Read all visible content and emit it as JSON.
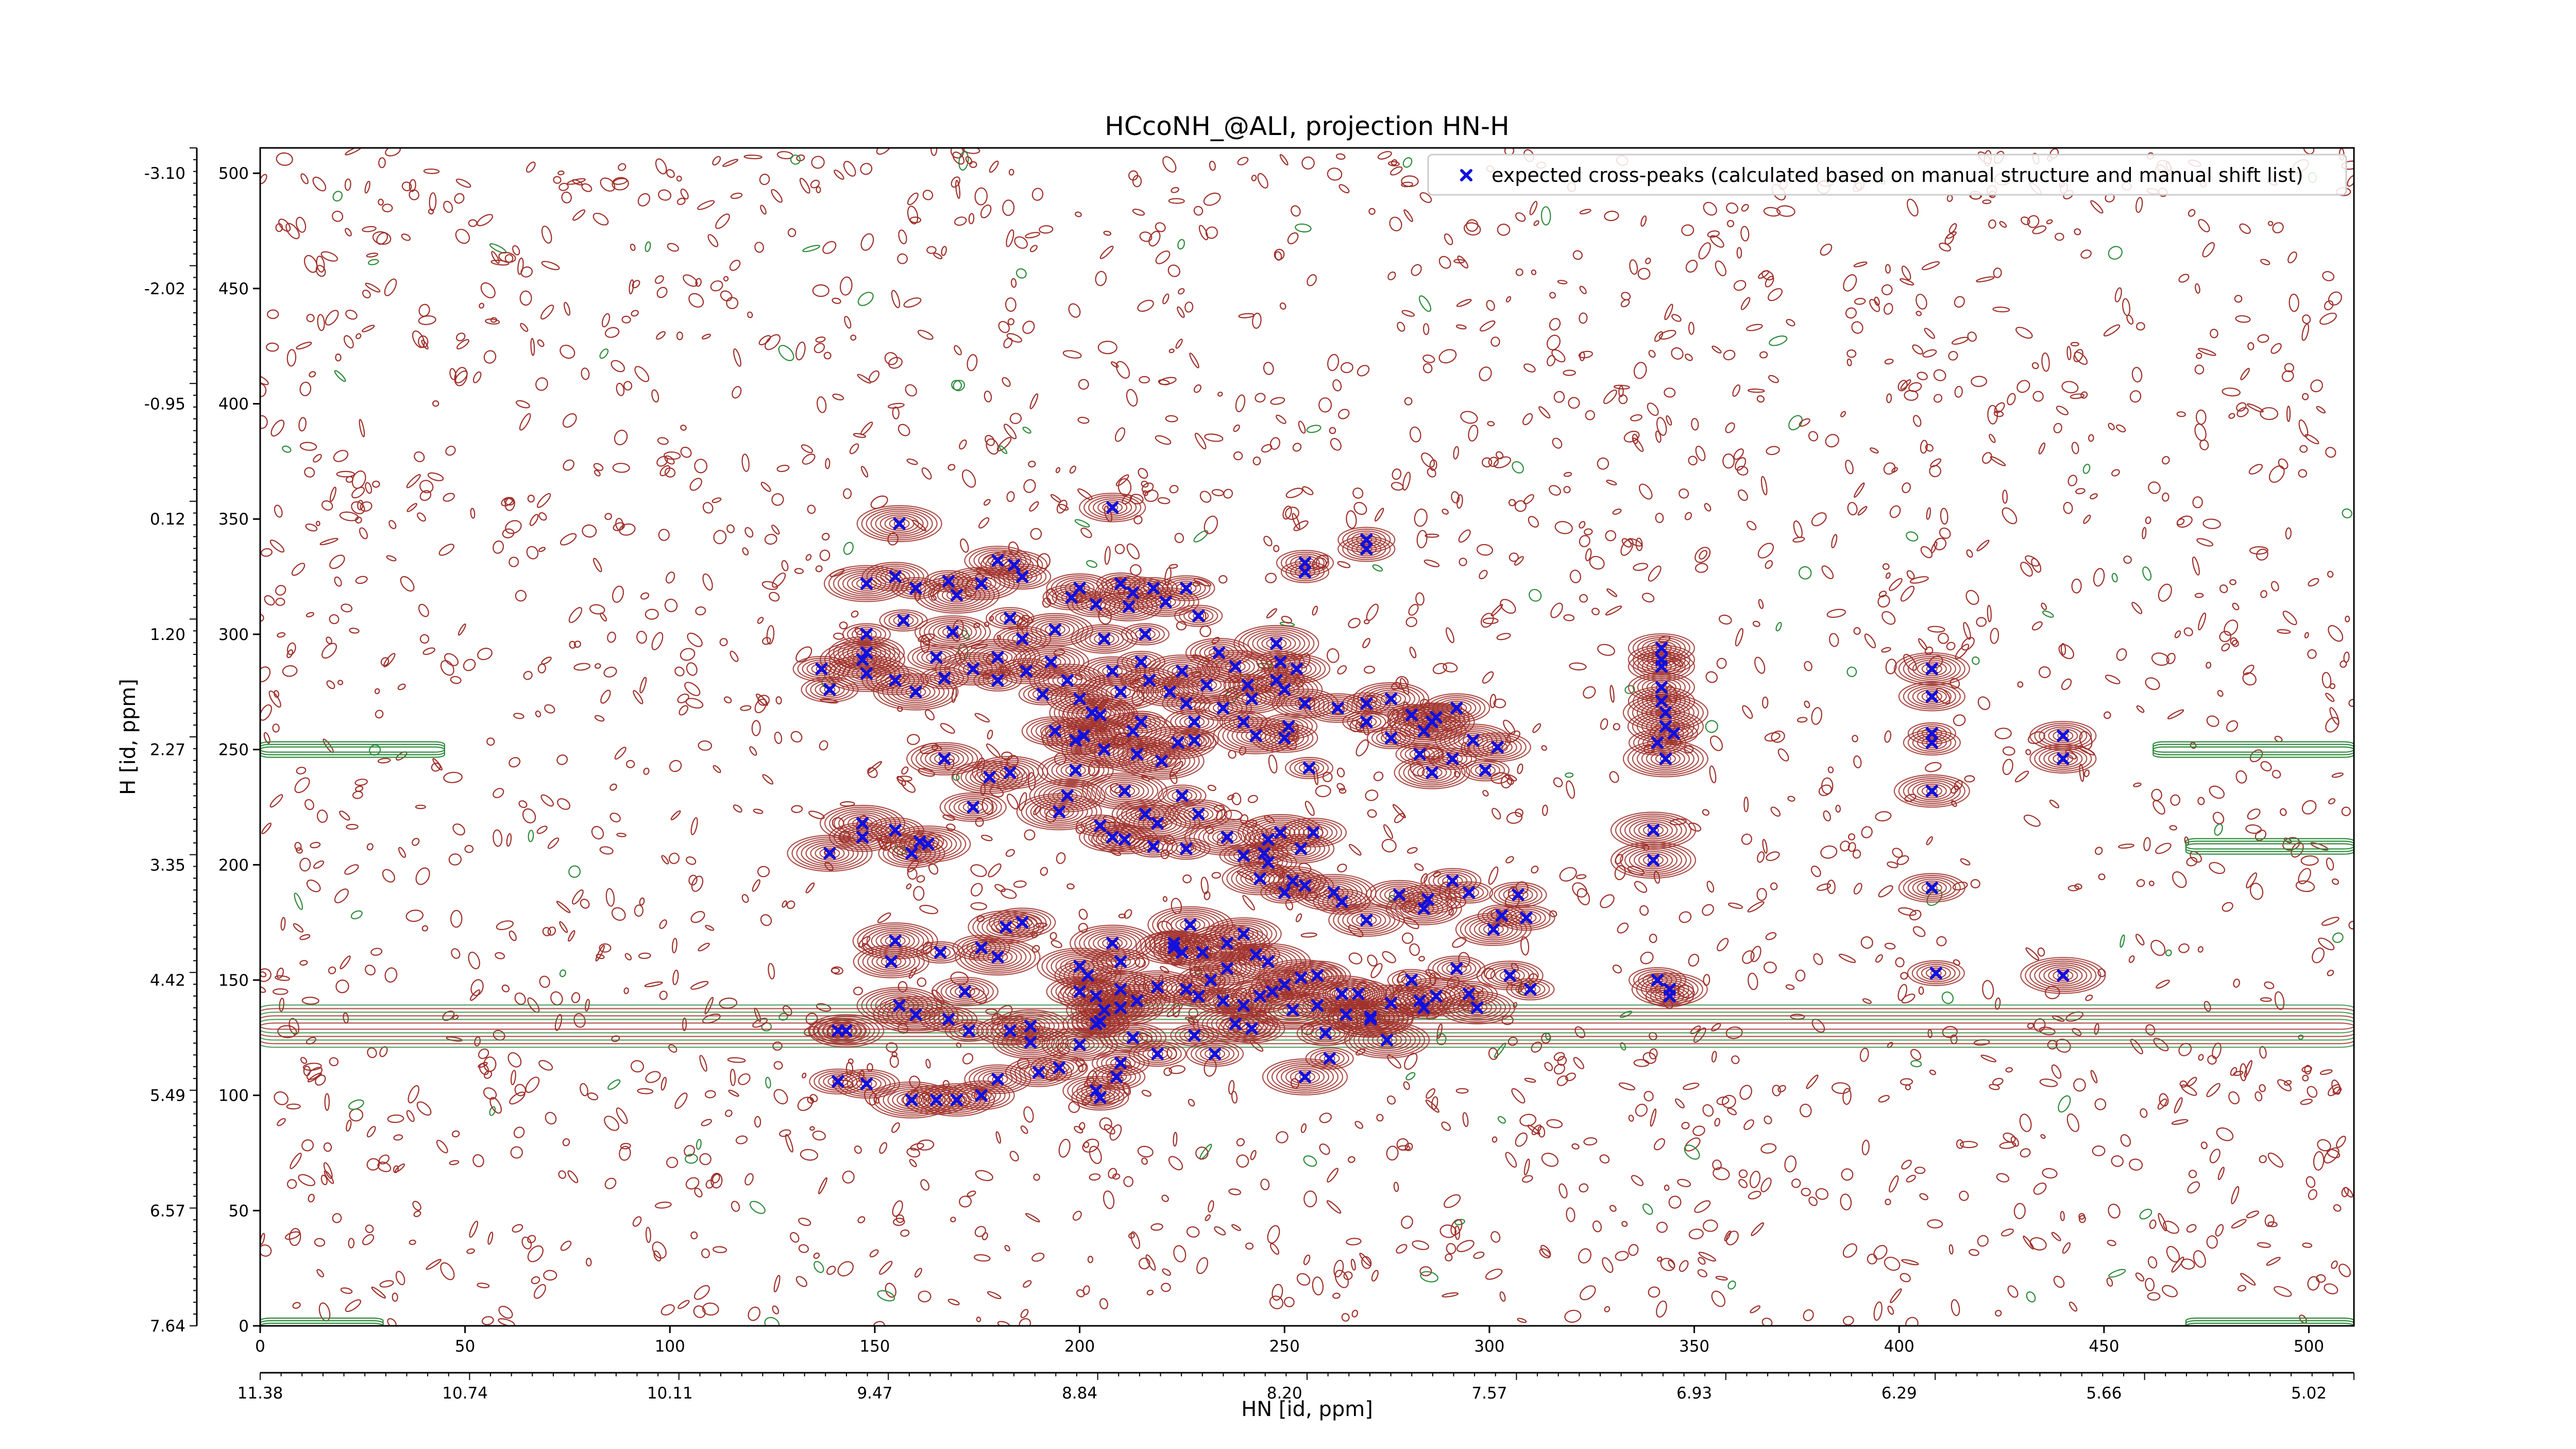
{
  "chart_data": {
    "type": "scatter",
    "title": "HCcoNH_@ALI, projection HN-H",
    "xlabel": "HN [id, ppm]",
    "ylabel": "H [id, ppm]",
    "xlim": [
      0,
      511
    ],
    "ylim": [
      0,
      511
    ],
    "x_ticks": [
      0,
      50,
      100,
      150,
      200,
      250,
      300,
      350,
      400,
      450,
      500
    ],
    "y_ticks": [
      0,
      50,
      100,
      150,
      200,
      250,
      300,
      350,
      400,
      450,
      500
    ],
    "x_ppm_ticks": [
      "11.38",
      "10.74",
      "10.11",
      "9.47",
      "8.84",
      "8.20",
      "7.57",
      "6.93",
      "6.29",
      "5.66",
      "5.02"
    ],
    "y_ppm_ticks": [
      "7.64",
      "6.57",
      "5.49",
      "4.42",
      "3.35",
      "2.27",
      "1.20",
      "0.12",
      "-0.95",
      "-2.02",
      "-3.10"
    ],
    "legend": {
      "position": "top-right",
      "label": "expected cross-peaks (calculated based on manual structure and manual shift list)"
    },
    "colors": {
      "positive_contour": "#a0302a",
      "negative_contour": "#2e8b3c",
      "peak_marker": "#1010e0"
    },
    "grid": false,
    "series": [
      {
        "marker": "blue-x",
        "points": [
          [
            156,
            348
          ],
          [
            208,
            355
          ],
          [
            270,
            337
          ],
          [
            270,
            341
          ],
          [
            255,
            327
          ],
          [
            255,
            331
          ],
          [
            148,
            322
          ],
          [
            155,
            325
          ],
          [
            160,
            320
          ],
          [
            168,
            323
          ],
          [
            170,
            317
          ],
          [
            176,
            322
          ],
          [
            180,
            332
          ],
          [
            184,
            330
          ],
          [
            186,
            325
          ],
          [
            198,
            316
          ],
          [
            200,
            320
          ],
          [
            204,
            313
          ],
          [
            210,
            322
          ],
          [
            213,
            318
          ],
          [
            218,
            320
          ],
          [
            221,
            314
          ],
          [
            226,
            320
          ],
          [
            229,
            308
          ],
          [
            148,
            300
          ],
          [
            157,
            306
          ],
          [
            169,
            301
          ],
          [
            183,
            307
          ],
          [
            186,
            298
          ],
          [
            194,
            302
          ],
          [
            206,
            298
          ],
          [
            212,
            312
          ],
          [
            216,
            300
          ],
          [
            147,
            289
          ],
          [
            148,
            292
          ],
          [
            148,
            283
          ],
          [
            139,
            276
          ],
          [
            137,
            285
          ],
          [
            155,
            280
          ],
          [
            160,
            275
          ],
          [
            165,
            290
          ],
          [
            167,
            281
          ],
          [
            174,
            285
          ],
          [
            180,
            280
          ],
          [
            180,
            290
          ],
          [
            187,
            284
          ],
          [
            191,
            274
          ],
          [
            193,
            288
          ],
          [
            197,
            280
          ],
          [
            200,
            272
          ],
          [
            203,
            266
          ],
          [
            208,
            284
          ],
          [
            210,
            275
          ],
          [
            215,
            288
          ],
          [
            217,
            280
          ],
          [
            222,
            275
          ],
          [
            225,
            284
          ],
          [
            226,
            270
          ],
          [
            228,
            262
          ],
          [
            231,
            278
          ],
          [
            235,
            268
          ],
          [
            240,
            262
          ],
          [
            243,
            256
          ],
          [
            248,
            296
          ],
          [
            249,
            288
          ],
          [
            248,
            280
          ],
          [
            250,
            276
          ],
          [
            253,
            285
          ],
          [
            255,
            270
          ],
          [
            251,
            260
          ],
          [
            234,
            292
          ],
          [
            238,
            286
          ],
          [
            241,
            278
          ],
          [
            242,
            272
          ],
          [
            194,
            258
          ],
          [
            199,
            254
          ],
          [
            201,
            256
          ],
          [
            206,
            250
          ],
          [
            213,
            258
          ],
          [
            214,
            248
          ],
          [
            220,
            245
          ],
          [
            224,
            253
          ],
          [
            228,
            254
          ],
          [
            215,
            262
          ],
          [
            205,
            265
          ],
          [
            250,
            255
          ],
          [
            256,
            242
          ],
          [
            263,
            268
          ],
          [
            270,
            262
          ],
          [
            276,
            255
          ],
          [
            283,
            248
          ],
          [
            286,
            240
          ],
          [
            281,
            265
          ],
          [
            286,
            262
          ],
          [
            284,
            258
          ],
          [
            292,
            268
          ],
          [
            291,
            246
          ],
          [
            296,
            254
          ],
          [
            299,
            241
          ],
          [
            302,
            251
          ],
          [
            276,
            272
          ],
          [
            270,
            270
          ],
          [
            287,
            264
          ],
          [
            167,
            246
          ],
          [
            183,
            240
          ],
          [
            178,
            238
          ],
          [
            197,
            230
          ],
          [
            211,
            232
          ],
          [
            216,
            222
          ],
          [
            219,
            218
          ],
          [
            225,
            230
          ],
          [
            229,
            222
          ],
          [
            199,
            241
          ],
          [
            139,
            205
          ],
          [
            147,
            212
          ],
          [
            147,
            218
          ],
          [
            155,
            215
          ],
          [
            161,
            210
          ],
          [
            159,
            205
          ],
          [
            163,
            209
          ],
          [
            174,
            225
          ],
          [
            195,
            223
          ],
          [
            205,
            217
          ],
          [
            208,
            212
          ],
          [
            211,
            211
          ],
          [
            218,
            208
          ],
          [
            226,
            207
          ],
          [
            236,
            212
          ],
          [
            246,
            211
          ],
          [
            249,
            214
          ],
          [
            254,
            207
          ],
          [
            257,
            214
          ],
          [
            244,
            194
          ],
          [
            246,
            201
          ],
          [
            250,
            188
          ],
          [
            240,
            204
          ],
          [
            245,
            205
          ],
          [
            252,
            193
          ],
          [
            255,
            191
          ],
          [
            262,
            188
          ],
          [
            264,
            184
          ],
          [
            270,
            176
          ],
          [
            278,
            187
          ],
          [
            284,
            181
          ],
          [
            285,
            185
          ],
          [
            291,
            193
          ],
          [
            295,
            188
          ],
          [
            303,
            178
          ],
          [
            307,
            187
          ],
          [
            309,
            177
          ],
          [
            301,
            172
          ],
          [
            223,
            166
          ],
          [
            225,
            162
          ],
          [
            230,
            162
          ],
          [
            223,
            164
          ],
          [
            227,
            174
          ],
          [
            236,
            166
          ],
          [
            240,
            170
          ],
          [
            243,
            161
          ],
          [
            246,
            158
          ],
          [
            236,
            155
          ],
          [
            232,
            150
          ],
          [
            229,
            143
          ],
          [
            235,
            141
          ],
          [
            226,
            146
          ],
          [
            219,
            147
          ],
          [
            214,
            141
          ],
          [
            210,
            138
          ],
          [
            205,
            132
          ],
          [
            200,
            156
          ],
          [
            202,
            152
          ],
          [
            200,
            145
          ],
          [
            204,
            143
          ],
          [
            208,
            166
          ],
          [
            210,
            158
          ],
          [
            210,
            146
          ],
          [
            206,
            137
          ],
          [
            180,
            160
          ],
          [
            176,
            164
          ],
          [
            182,
            173
          ],
          [
            186,
            175
          ],
          [
            166,
            162
          ],
          [
            155,
            167
          ],
          [
            154,
            158
          ],
          [
            172,
            145
          ],
          [
            204,
            131
          ],
          [
            200,
            122
          ],
          [
            213,
            125
          ],
          [
            219,
            118
          ],
          [
            228,
            126
          ],
          [
            238,
            131
          ],
          [
            242,
            129
          ],
          [
            240,
            139
          ],
          [
            244,
            143
          ],
          [
            252,
            137
          ],
          [
            258,
            139
          ],
          [
            264,
            144
          ],
          [
            268,
            144
          ],
          [
            271,
            134
          ],
          [
            276,
            140
          ],
          [
            281,
            150
          ],
          [
            283,
            141
          ],
          [
            284,
            138
          ],
          [
            287,
            143
          ],
          [
            292,
            155
          ],
          [
            295,
            144
          ],
          [
            297,
            138
          ],
          [
            305,
            152
          ],
          [
            310,
            146
          ],
          [
            260,
            127
          ],
          [
            265,
            135
          ],
          [
            271,
            133
          ],
          [
            247,
            145
          ],
          [
            250,
            148
          ],
          [
            254,
            151
          ],
          [
            258,
            152
          ],
          [
            188,
            123
          ],
          [
            188,
            130
          ],
          [
            183,
            128
          ],
          [
            173,
            128
          ],
          [
            168,
            133
          ],
          [
            160,
            135
          ],
          [
            156,
            139
          ],
          [
            195,
            112
          ],
          [
            190,
            110
          ],
          [
            180,
            107
          ],
          [
            176,
            100
          ],
          [
            170,
            98
          ],
          [
            165,
            98
          ],
          [
            159,
            98
          ],
          [
            141,
            106
          ],
          [
            148,
            105
          ],
          [
            204,
            102
          ],
          [
            209,
            108
          ],
          [
            210,
            114
          ],
          [
            205,
            99
          ],
          [
            233,
            118
          ],
          [
            255,
            108
          ],
          [
            261,
            116
          ],
          [
            275,
            124
          ],
          [
            141,
            128
          ],
          [
            143,
            128
          ],
          [
            342,
            294
          ],
          [
            342,
            289
          ],
          [
            342,
            286
          ],
          [
            342,
            277
          ],
          [
            342,
            271
          ],
          [
            343,
            266
          ],
          [
            343,
            260
          ],
          [
            345,
            257
          ],
          [
            341,
            253
          ],
          [
            343,
            246
          ],
          [
            340,
            215
          ],
          [
            340,
            202
          ],
          [
            341,
            150
          ],
          [
            344,
            146
          ],
          [
            344,
            143
          ],
          [
            408,
            285
          ],
          [
            408,
            273
          ],
          [
            408,
            257
          ],
          [
            408,
            253
          ],
          [
            408,
            232
          ],
          [
            408,
            190
          ],
          [
            409,
            153
          ],
          [
            440,
            256
          ],
          [
            440,
            246
          ],
          [
            440,
            152
          ]
        ]
      }
    ]
  }
}
